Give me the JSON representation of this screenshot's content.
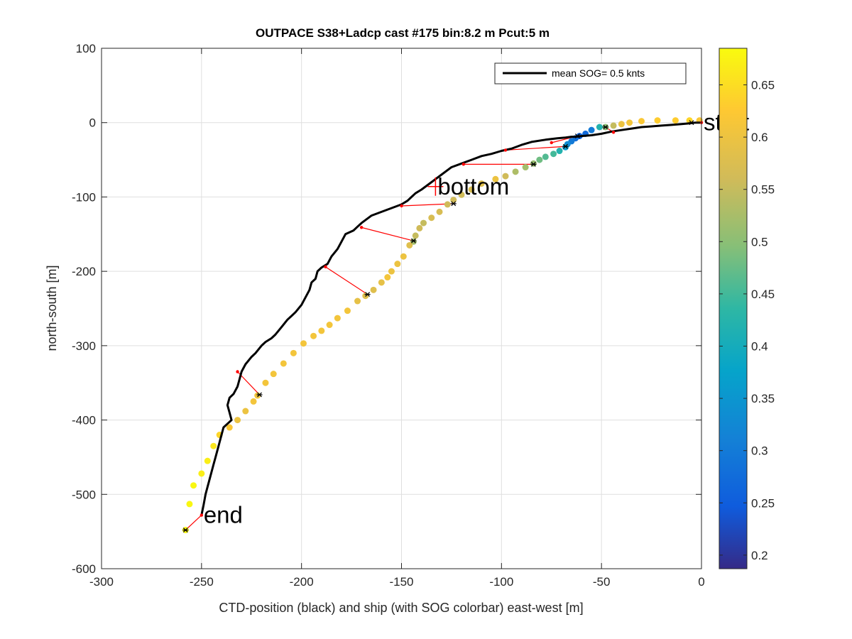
{
  "chart_data": {
    "type": "scatter",
    "title": "OUTPACE S38+Ladcp cast #175 bin:8.2 m  Pcut:5 m",
    "xlabel": "CTD-position (black) and ship (with SOG colorbar) east-west [m]",
    "ylabel": "north-south [m]",
    "xlim": [
      -300,
      0
    ],
    "ylim": [
      -600,
      100
    ],
    "xticks": [
      "-300",
      "-250",
      "-200",
      "-150",
      "-100",
      "-50",
      "0"
    ],
    "yticks": [
      "100",
      "0",
      "-100",
      "-200",
      "-300",
      "-400",
      "-500",
      "-600"
    ],
    "grid": true,
    "legend": {
      "position": "top-right",
      "label": "mean SOG=  0.5 knts"
    },
    "colorbar": {
      "range": [
        0.187,
        0.685
      ],
      "ticks": [
        "0.2",
        "0.25",
        "0.3",
        "0.35",
        "0.4",
        "0.45",
        "0.5",
        "0.55",
        "0.6",
        "0.65"
      ],
      "colormap": "parula"
    },
    "annotations": [
      {
        "text": "start",
        "x": 0,
        "y": 0
      },
      {
        "text": "bottom",
        "x": -133,
        "y": -86
      },
      {
        "text": "end",
        "x": -250,
        "y": -528
      }
    ],
    "bottom_marker": {
      "x": -133,
      "y": -86,
      "color": "#ff0000"
    },
    "ctd_track": {
      "name": "CTD-position",
      "color": "#000000",
      "x": [
        0,
        -3,
        -6,
        -10,
        -15,
        -20,
        -25,
        -30,
        -35,
        -40,
        -45,
        -50,
        -55,
        -60,
        -63,
        -65,
        -68,
        -72,
        -78,
        -85,
        -90,
        -95,
        -100,
        -105,
        -110,
        -115,
        -120,
        -125,
        -130,
        -135,
        -140,
        -143,
        -145,
        -147,
        -150,
        -155,
        -160,
        -165,
        -170,
        -172,
        -174,
        -178,
        -180,
        -182,
        -185,
        -187,
        -190,
        -192,
        -193,
        -195,
        -196,
        -198,
        -200,
        -203,
        -205,
        -207,
        -210,
        -213,
        -215,
        -218,
        -220,
        -223,
        -225,
        -228,
        -230,
        -231,
        -232,
        -233,
        -234,
        -236,
        -237,
        -236,
        -235,
        -237,
        -239,
        -240,
        -241,
        -242,
        -243,
        -244,
        -245,
        -246,
        -247,
        -248,
        -249,
        -250
      ],
      "y": [
        0,
        0,
        -1,
        -2,
        -3,
        -4,
        -5,
        -6,
        -8,
        -10,
        -12,
        -15,
        -17,
        -18,
        -19,
        -19,
        -20,
        -21,
        -23,
        -26,
        -30,
        -35,
        -38,
        -42,
        -45,
        -50,
        -55,
        -60,
        -70,
        -80,
        -90,
        -95,
        -100,
        -105,
        -110,
        -115,
        -120,
        -125,
        -135,
        -140,
        -145,
        -150,
        -160,
        -170,
        -180,
        -190,
        -195,
        -200,
        -210,
        -215,
        -225,
        -235,
        -245,
        -255,
        -260,
        -265,
        -275,
        -285,
        -290,
        -295,
        -300,
        -310,
        -315,
        -325,
        -335,
        -345,
        -355,
        -360,
        -365,
        -370,
        -380,
        -390,
        -400,
        -405,
        -410,
        -420,
        -430,
        -440,
        -450,
        -460,
        -470,
        -480,
        -490,
        -500,
        -515,
        -528
      ]
    },
    "ship_track": {
      "name": "ship (SOG)",
      "points": [
        {
          "x": -1,
          "y": 3,
          "sog": 0.62
        },
        {
          "x": -6,
          "y": 3,
          "sog": 0.64
        },
        {
          "x": -13,
          "y": 3,
          "sog": 0.63
        },
        {
          "x": -22,
          "y": 3,
          "sog": 0.63
        },
        {
          "x": -30,
          "y": 2,
          "sog": 0.62
        },
        {
          "x": -36,
          "y": 0,
          "sog": 0.61
        },
        {
          "x": -40,
          "y": -2,
          "sog": 0.6
        },
        {
          "x": -44,
          "y": -4,
          "sog": 0.55
        },
        {
          "x": -48,
          "y": -6,
          "sog": 0.5
        },
        {
          "x": -51,
          "y": -6,
          "sog": 0.42
        },
        {
          "x": -55,
          "y": -10,
          "sog": 0.3
        },
        {
          "x": -58,
          "y": -15,
          "sog": 0.27
        },
        {
          "x": -61,
          "y": -18,
          "sog": 0.26
        },
        {
          "x": -63,
          "y": -21,
          "sog": 0.28
        },
        {
          "x": -65,
          "y": -25,
          "sog": 0.3
        },
        {
          "x": -67,
          "y": -29,
          "sog": 0.33
        },
        {
          "x": -68,
          "y": -33,
          "sog": 0.36
        },
        {
          "x": -71,
          "y": -38,
          "sog": 0.42
        },
        {
          "x": -74,
          "y": -42,
          "sog": 0.45
        },
        {
          "x": -78,
          "y": -46,
          "sog": 0.46
        },
        {
          "x": -81,
          "y": -50,
          "sog": 0.48
        },
        {
          "x": -84,
          "y": -55,
          "sog": 0.51
        },
        {
          "x": -88,
          "y": -60,
          "sog": 0.52
        },
        {
          "x": -93,
          "y": -66,
          "sog": 0.53
        },
        {
          "x": -98,
          "y": -72,
          "sog": 0.56
        },
        {
          "x": -103,
          "y": -76,
          "sog": 0.6
        },
        {
          "x": -110,
          "y": -82,
          "sog": 0.58
        },
        {
          "x": -115,
          "y": -90,
          "sog": 0.57
        },
        {
          "x": -120,
          "y": -97,
          "sog": 0.56
        },
        {
          "x": -124,
          "y": -104,
          "sog": 0.56
        },
        {
          "x": -127,
          "y": -110,
          "sog": 0.56
        },
        {
          "x": -131,
          "y": -120,
          "sog": 0.57
        },
        {
          "x": -135,
          "y": -128,
          "sog": 0.57
        },
        {
          "x": -139,
          "y": -135,
          "sog": 0.55
        },
        {
          "x": -141,
          "y": -142,
          "sog": 0.56
        },
        {
          "x": -143,
          "y": -152,
          "sog": 0.55
        },
        {
          "x": -144,
          "y": -160,
          "sog": 0.52
        },
        {
          "x": -146,
          "y": -165,
          "sog": 0.58
        },
        {
          "x": -149,
          "y": -180,
          "sog": 0.6
        },
        {
          "x": -152,
          "y": -190,
          "sog": 0.6
        },
        {
          "x": -155,
          "y": -200,
          "sog": 0.6
        },
        {
          "x": -157,
          "y": -208,
          "sog": 0.61
        },
        {
          "x": -160,
          "y": -215,
          "sog": 0.59
        },
        {
          "x": -164,
          "y": -225,
          "sog": 0.58
        },
        {
          "x": -168,
          "y": -233,
          "sog": 0.58
        },
        {
          "x": -172,
          "y": -240,
          "sog": 0.59
        },
        {
          "x": -177,
          "y": -253,
          "sog": 0.61
        },
        {
          "x": -182,
          "y": -263,
          "sog": 0.61
        },
        {
          "x": -186,
          "y": -272,
          "sog": 0.61
        },
        {
          "x": -190,
          "y": -280,
          "sog": 0.61
        },
        {
          "x": -194,
          "y": -287,
          "sog": 0.61
        },
        {
          "x": -199,
          "y": -297,
          "sog": 0.61
        },
        {
          "x": -204,
          "y": -310,
          "sog": 0.61
        },
        {
          "x": -209,
          "y": -324,
          "sog": 0.61
        },
        {
          "x": -214,
          "y": -338,
          "sog": 0.61
        },
        {
          "x": -218,
          "y": -350,
          "sog": 0.61
        },
        {
          "x": -222,
          "y": -367,
          "sog": 0.61
        },
        {
          "x": -224,
          "y": -375,
          "sog": 0.61
        },
        {
          "x": -228,
          "y": -388,
          "sog": 0.6
        },
        {
          "x": -232,
          "y": -400,
          "sog": 0.6
        },
        {
          "x": -236,
          "y": -410,
          "sog": 0.62
        },
        {
          "x": -241,
          "y": -420,
          "sog": 0.64
        },
        {
          "x": -244,
          "y": -435,
          "sog": 0.66
        },
        {
          "x": -247,
          "y": -455,
          "sog": 0.67
        },
        {
          "x": -250,
          "y": -472,
          "sog": 0.67
        },
        {
          "x": -254,
          "y": -488,
          "sog": 0.68
        },
        {
          "x": -256,
          "y": -513,
          "sog": 0.68
        },
        {
          "x": -258,
          "y": -548,
          "sog": 0.68
        }
      ]
    },
    "connectors": [
      {
        "ship": [
          -5,
          0
        ],
        "ctd": [
          0,
          0
        ]
      },
      {
        "ship": [
          -48,
          -6
        ],
        "ctd": [
          -44,
          -13
        ]
      },
      {
        "ship": [
          -62,
          -18
        ],
        "ctd": [
          -75,
          -27
        ]
      },
      {
        "ship": [
          -68,
          -32
        ],
        "ctd": [
          -98,
          -37
        ]
      },
      {
        "ship": [
          -84,
          -56
        ],
        "ctd": [
          -119,
          -56
        ]
      },
      {
        "ship": [
          -124,
          -109
        ],
        "ctd": [
          -150,
          -112
        ]
      },
      {
        "ship": [
          -144,
          -159
        ],
        "ctd": [
          -170,
          -141
        ]
      },
      {
        "ship": [
          -167,
          -231
        ],
        "ctd": [
          -188,
          -194
        ]
      },
      {
        "ship": [
          -221,
          -366
        ],
        "ctd": [
          -232,
          -335
        ]
      },
      {
        "ship": [
          -258,
          -548
        ],
        "ctd": [
          -250,
          -528
        ]
      }
    ]
  }
}
